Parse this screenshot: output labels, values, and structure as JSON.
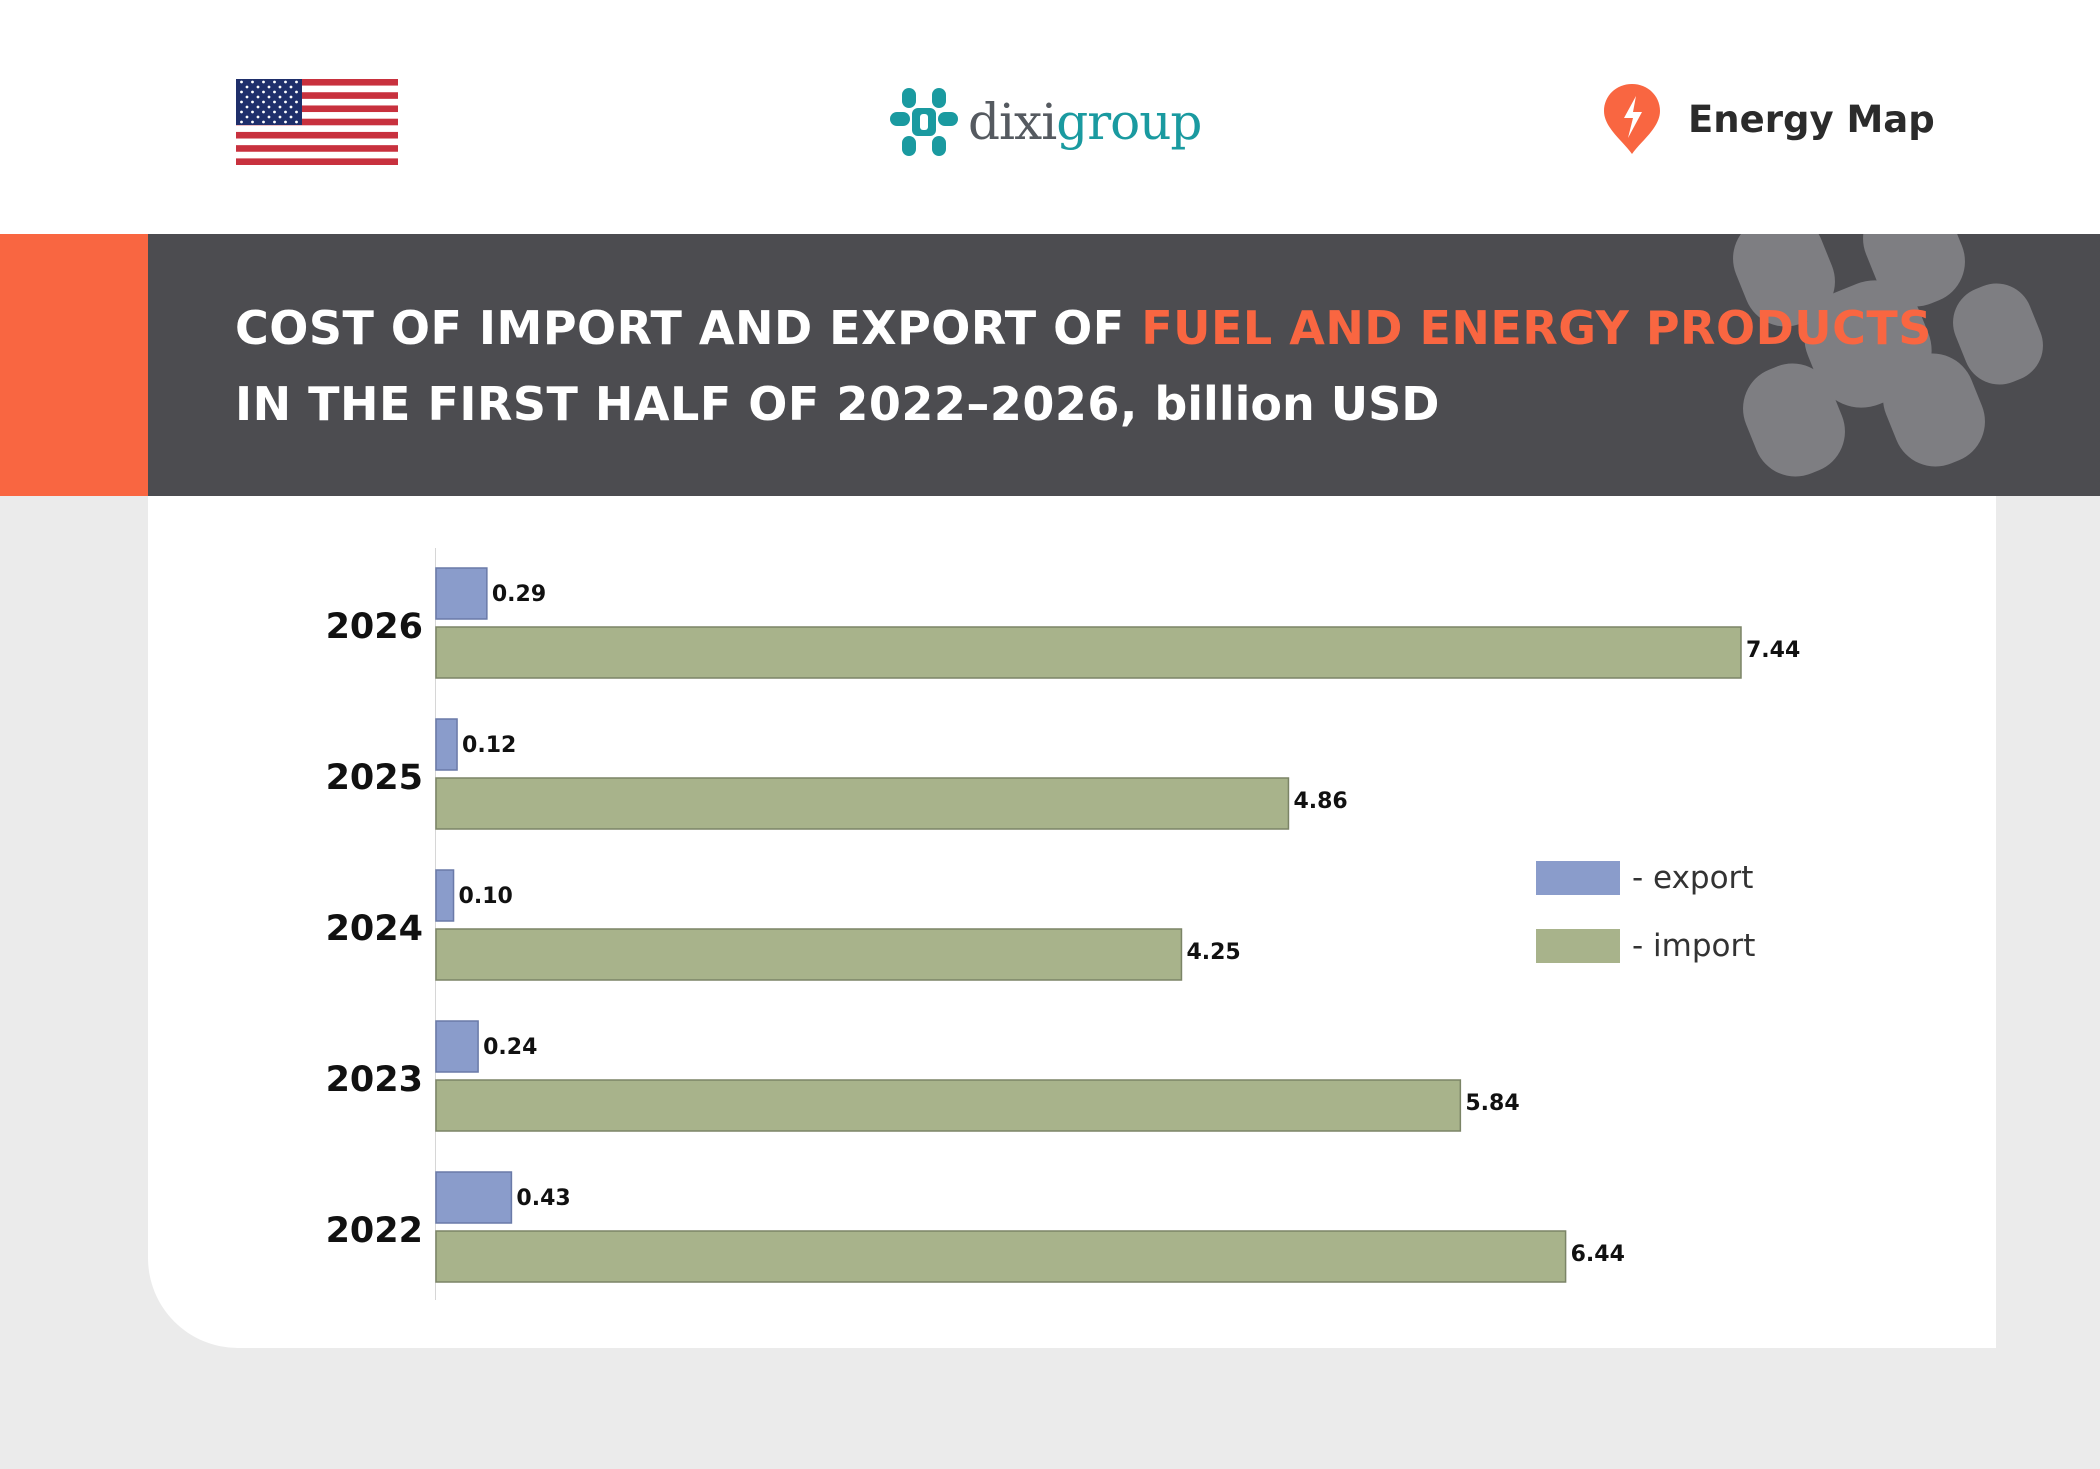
{
  "header": {
    "flag_icon": "us-flag-icon",
    "logo": {
      "part1": "dixi",
      "part2": "group",
      "color_gray": "#555a60",
      "color_teal": "#1a9aa0"
    },
    "brand": {
      "icon": "energy-map-pin-icon",
      "label": "Energy Map",
      "color": "#f96641"
    }
  },
  "title": {
    "line1_prefix": "COST OF IMPORT AND EXPORT OF ",
    "line1_highlight": "FUEL AND ENERGY PRODUCTS",
    "line2_main": "IN THE FIRST HALF OF 2022–2026, ",
    "line2_unit": "billion USD"
  },
  "colors": {
    "accent": "#f96641",
    "banner": "#4c4c50",
    "export": "#8a9ccb",
    "import": "#a8b38b",
    "page_bg": "#ebebeb"
  },
  "chart_data": {
    "type": "bar",
    "orientation": "horizontal",
    "categories": [
      "2026",
      "2025",
      "2024",
      "2023",
      "2022"
    ],
    "series": [
      {
        "name": "export",
        "values": [
          0.29,
          0.12,
          0.1,
          0.24,
          0.43
        ],
        "labels": [
          "0.29",
          "0.12",
          "0.10",
          "0.24",
          "0.43"
        ]
      },
      {
        "name": "import",
        "values": [
          7.44,
          4.86,
          4.25,
          5.84,
          6.44
        ],
        "labels": [
          "7.44",
          "4.86",
          "4.25",
          "5.84",
          "6.44"
        ]
      }
    ],
    "title": "COST OF IMPORT AND EXPORT OF FUEL AND ENERGY PRODUCTS IN THE FIRST HALF OF 2022–2026, billion USD",
    "xlabel": "",
    "ylabel": "",
    "xlim": [
      0,
      7.44
    ],
    "grid": false,
    "legend": {
      "position": "right",
      "items": [
        {
          "label": "- export",
          "series": "export"
        },
        {
          "label": "- import",
          "series": "import"
        }
      ]
    }
  }
}
